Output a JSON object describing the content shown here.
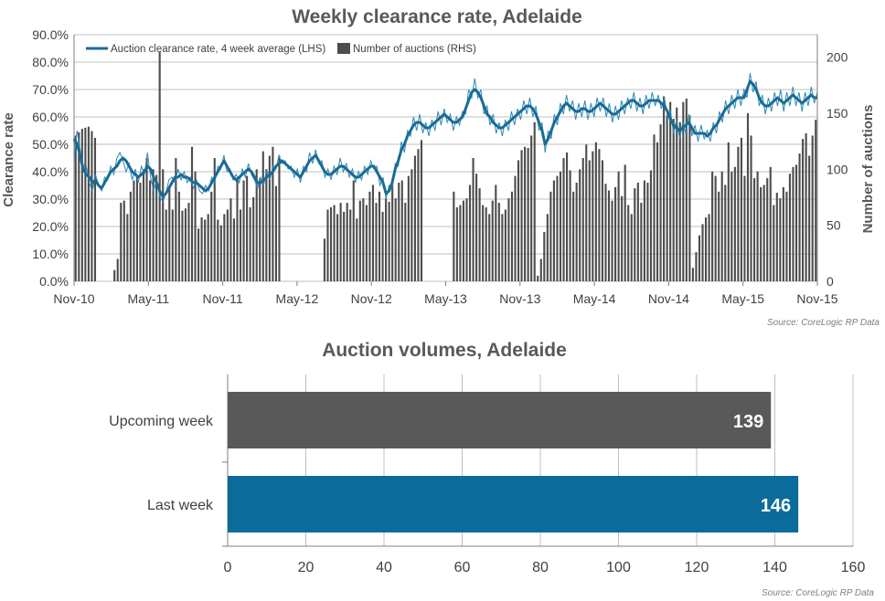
{
  "colors": {
    "clearance_line": "#1a6b94",
    "clearance_thin": "#2e8ab8",
    "auction_bars": "#4d4d4d",
    "gridline": "#bfbfbf",
    "upcoming_bar": "#595959",
    "last_week_bar": "#0b6c9c",
    "title_text": "#595959"
  },
  "chart_data": [
    {
      "type": "line",
      "title": "Weekly clearance rate, Adelaide",
      "ylabel_left": "Clearance rate",
      "ylabel_right": "Number of auctions",
      "x_tick_labels": [
        "Nov-10",
        "May-11",
        "Nov-11",
        "May-12",
        "Nov-12",
        "May-13",
        "Nov-13",
        "May-14",
        "Nov-14",
        "May-15",
        "Nov-15"
      ],
      "y_left_ticks": [
        "0.0%",
        "10.0%",
        "20.0%",
        "30.0%",
        "40.0%",
        "50.0%",
        "60.0%",
        "70.0%",
        "80.0%",
        "90.0%"
      ],
      "y_left_range": [
        0,
        90
      ],
      "y_right_ticks": [
        "0",
        "50",
        "100",
        "150",
        "200"
      ],
      "y_right_range": [
        0,
        220
      ],
      "legend": {
        "placement": "top-left",
        "line_label": "Auction clearance rate, 4 week average (LHS)",
        "bar_label": "Number of auctions (RHS)"
      },
      "source": "Source: CoreLogic  RP Data",
      "series": [
        {
          "name": "Auction clearance rate, 4 week average (LHS)",
          "axis": "left",
          "style": "thick-line",
          "values": [
            52,
            50,
            46,
            41,
            39,
            38,
            36,
            37,
            35,
            34,
            36,
            38,
            40,
            41,
            42,
            44,
            45,
            44,
            42,
            40,
            39,
            38,
            39,
            40,
            42,
            41,
            38,
            36,
            33,
            31,
            32,
            34,
            36,
            38,
            38,
            39,
            38,
            38,
            37,
            36,
            36,
            35,
            34,
            33,
            34,
            36,
            38,
            40,
            42,
            44,
            42,
            40,
            38,
            37,
            38,
            39,
            40,
            41,
            40,
            38,
            36,
            36,
            37,
            38,
            39,
            40,
            42,
            43,
            44,
            43,
            42,
            41,
            40,
            39,
            38,
            40,
            42,
            44,
            45,
            46,
            44,
            42,
            40,
            39,
            39,
            40,
            41,
            42,
            42,
            41,
            40,
            39,
            38,
            38,
            39,
            40,
            41,
            42,
            42,
            40,
            38,
            36,
            32,
            33,
            36,
            41,
            44,
            48,
            50,
            53,
            55,
            57,
            58,
            58,
            57,
            56,
            56,
            57,
            58,
            59,
            60,
            61,
            60,
            59,
            58,
            58,
            59,
            60,
            63,
            66,
            69,
            70,
            69,
            67,
            64,
            61,
            60,
            58,
            57,
            56,
            56,
            57,
            58,
            59,
            60,
            61,
            62,
            63,
            64,
            64,
            63,
            61,
            58,
            55,
            50,
            52,
            55,
            58,
            60,
            62,
            64,
            65,
            64,
            63,
            62,
            62,
            63,
            63,
            62,
            62,
            63,
            64,
            65,
            64,
            63,
            62,
            61,
            61,
            62,
            63,
            64,
            65,
            66,
            66,
            65,
            64,
            64,
            65,
            66,
            66,
            66,
            66,
            65,
            64,
            62,
            59,
            57,
            56,
            55,
            56,
            57,
            58,
            56,
            54,
            54,
            54,
            54,
            53,
            54,
            56,
            57,
            59,
            61,
            63,
            64,
            65,
            66,
            67,
            67,
            67,
            70,
            73,
            72,
            70,
            67,
            65,
            64,
            64,
            65,
            66,
            67,
            66,
            65,
            66,
            67,
            68,
            67,
            66,
            65,
            66,
            67,
            68,
            67,
            67
          ]
        },
        {
          "name": "Weekly clearance rate",
          "axis": "left",
          "style": "thin-line",
          "values": [
            45,
            55,
            48,
            40,
            42,
            36,
            33,
            39,
            35,
            33,
            38,
            37,
            42,
            39,
            45,
            47,
            44,
            40,
            43,
            37,
            41,
            36,
            42,
            39,
            47,
            38,
            33,
            37,
            31,
            29,
            32,
            37,
            38,
            36,
            41,
            37,
            40,
            36,
            38,
            34,
            37,
            33,
            32,
            35,
            33,
            38,
            36,
            42,
            41,
            46,
            40,
            41,
            37,
            39,
            36,
            41,
            38,
            43,
            39,
            37,
            34,
            38,
            35,
            41,
            37,
            42,
            41,
            46,
            43,
            44,
            41,
            42,
            38,
            41,
            36,
            42,
            40,
            47,
            43,
            48,
            43,
            44,
            38,
            41,
            37,
            42,
            39,
            45,
            40,
            43,
            38,
            41,
            36,
            40,
            37,
            42,
            39,
            44,
            41,
            42,
            35,
            38,
            30,
            35,
            34,
            43,
            42,
            51,
            47,
            55,
            53,
            60,
            55,
            61,
            54,
            58,
            53,
            59,
            55,
            62,
            57,
            63,
            58,
            61,
            55,
            60,
            57,
            62,
            61,
            70,
            67,
            74,
            67,
            70,
            61,
            64,
            57,
            61,
            54,
            58,
            53,
            59,
            55,
            62,
            57,
            63,
            59,
            66,
            61,
            67,
            60,
            64,
            55,
            58,
            47,
            55,
            52,
            61,
            57,
            65,
            61,
            68,
            62,
            66,
            59,
            65,
            60,
            66,
            59,
            65,
            60,
            67,
            62,
            67,
            60,
            65,
            58,
            64,
            59,
            66,
            61,
            67,
            63,
            69,
            62,
            67,
            61,
            68,
            63,
            69,
            64,
            68,
            63,
            67,
            60,
            62,
            54,
            59,
            52,
            58,
            54,
            61,
            53,
            57,
            51,
            57,
            52,
            55,
            51,
            58,
            54,
            62,
            58,
            66,
            61,
            68,
            63,
            70,
            64,
            70,
            67,
            76,
            69,
            73,
            64,
            68,
            61,
            67,
            62,
            69,
            64,
            70,
            62,
            69,
            64,
            71,
            64,
            69,
            62,
            69,
            64,
            71,
            65,
            69
          ]
        },
        {
          "name": "Number of auctions (RHS)",
          "axis": "right",
          "style": "bars",
          "values": [
            130,
            133,
            136,
            137,
            138,
            134,
            128,
            0,
            0,
            0,
            0,
            0,
            10,
            20,
            70,
            72,
            60,
            80,
            90,
            95,
            88,
            100,
            110,
            90,
            100,
            95,
            205,
            100,
            64,
            85,
            64,
            110,
            80,
            63,
            65,
            70,
            120,
            98,
            47,
            57,
            55,
            60,
            80,
            110,
            55,
            50,
            60,
            64,
            74,
            56,
            90,
            64,
            90,
            94,
            66,
            75,
            100,
            92,
            116,
            100,
            112,
            120,
            85,
            112,
            0,
            0,
            0,
            0,
            0,
            0,
            0,
            0,
            0,
            0,
            0,
            0,
            0,
            38,
            64,
            66,
            68,
            60,
            70,
            62,
            70,
            64,
            90,
            56,
            72,
            74,
            68,
            80,
            86,
            70,
            80,
            62,
            74,
            71,
            86,
            74,
            88,
            90,
            70,
            94,
            100,
            112,
            118,
            126,
            0,
            0,
            0,
            0,
            0,
            0,
            0,
            0,
            0,
            80,
            66,
            68,
            72,
            74,
            86,
            110,
            96,
            83,
            68,
            66,
            60,
            72,
            86,
            70,
            60,
            64,
            74,
            80,
            94,
            108,
            117,
            120,
            119,
            130,
            142,
            5,
            20,
            44,
            60,
            80,
            90,
            94,
            98,
            110,
            115,
            99,
            80,
            88,
            100,
            110,
            122,
            108,
            116,
            124,
            118,
            108,
            87,
            81,
            72,
            84,
            98,
            76,
            104,
            68,
            60,
            83,
            88,
            70,
            90,
            88,
            99,
            131,
            124,
            140,
            165,
            148,
            160,
            145,
            155,
            142,
            160,
            163,
            148,
            12,
            26,
            41,
            51,
            57,
            60,
            98,
            94,
            80,
            98,
            86,
            124,
            98,
            102,
            120,
            128,
            94,
            150,
            130,
            92,
            98,
            84,
            86,
            92,
            102,
            68,
            79,
            74,
            84,
            80,
            96,
            102,
            104,
            114,
            127,
            132,
            112,
            130,
            144
          ]
        }
      ]
    },
    {
      "type": "bar",
      "orientation": "horizontal",
      "title": "Auction volumes, Adelaide",
      "categories": [
        "Upcoming week",
        "Last week"
      ],
      "values": [
        139,
        146
      ],
      "xlim": [
        0,
        160
      ],
      "x_ticks": [
        "0",
        "20",
        "40",
        "60",
        "80",
        "100",
        "120",
        "140",
        "160"
      ],
      "value_labels": [
        "139",
        "146"
      ],
      "source": "Source: CoreLogic  RP Data"
    }
  ]
}
